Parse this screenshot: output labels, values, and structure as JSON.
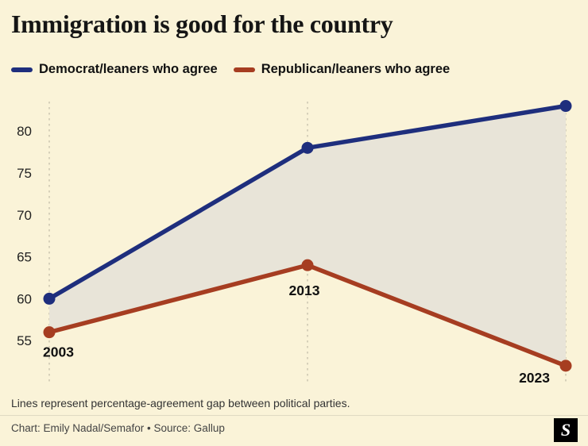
{
  "title": "Immigration is good for the country",
  "legend": {
    "items": [
      {
        "label": "Democrat/leaners who agree",
        "color": "#1e2e7d"
      },
      {
        "label": "Republican/leaners who agree",
        "color": "#a63d21"
      }
    ]
  },
  "chart_data": {
    "type": "line",
    "x": [
      2003,
      2013,
      2023
    ],
    "series": [
      {
        "name": "Democrat/leaners who agree",
        "color": "#1e2e7d",
        "values": [
          60,
          78,
          83
        ]
      },
      {
        "name": "Republican/leaners who agree",
        "color": "#a63d21",
        "values": [
          56,
          64,
          52
        ]
      }
    ],
    "yticks": [
      80,
      75,
      70,
      65,
      60,
      55
    ],
    "ylim": [
      51,
      85
    ],
    "grid": "vertical-dashed",
    "grid_color": "#c8c2ad",
    "gap_fill_color": "#e8e4d8",
    "background_color": "#faf3d8",
    "point_year_labels": [
      "2003",
      "2013",
      "2023"
    ],
    "title": "Immigration is good for the country"
  },
  "note": "Lines represent percentage-agreement gap between political parties.",
  "credit": "Chart: Emily Nadal/Semafor • Source: Gallup",
  "logo_letter": "S"
}
